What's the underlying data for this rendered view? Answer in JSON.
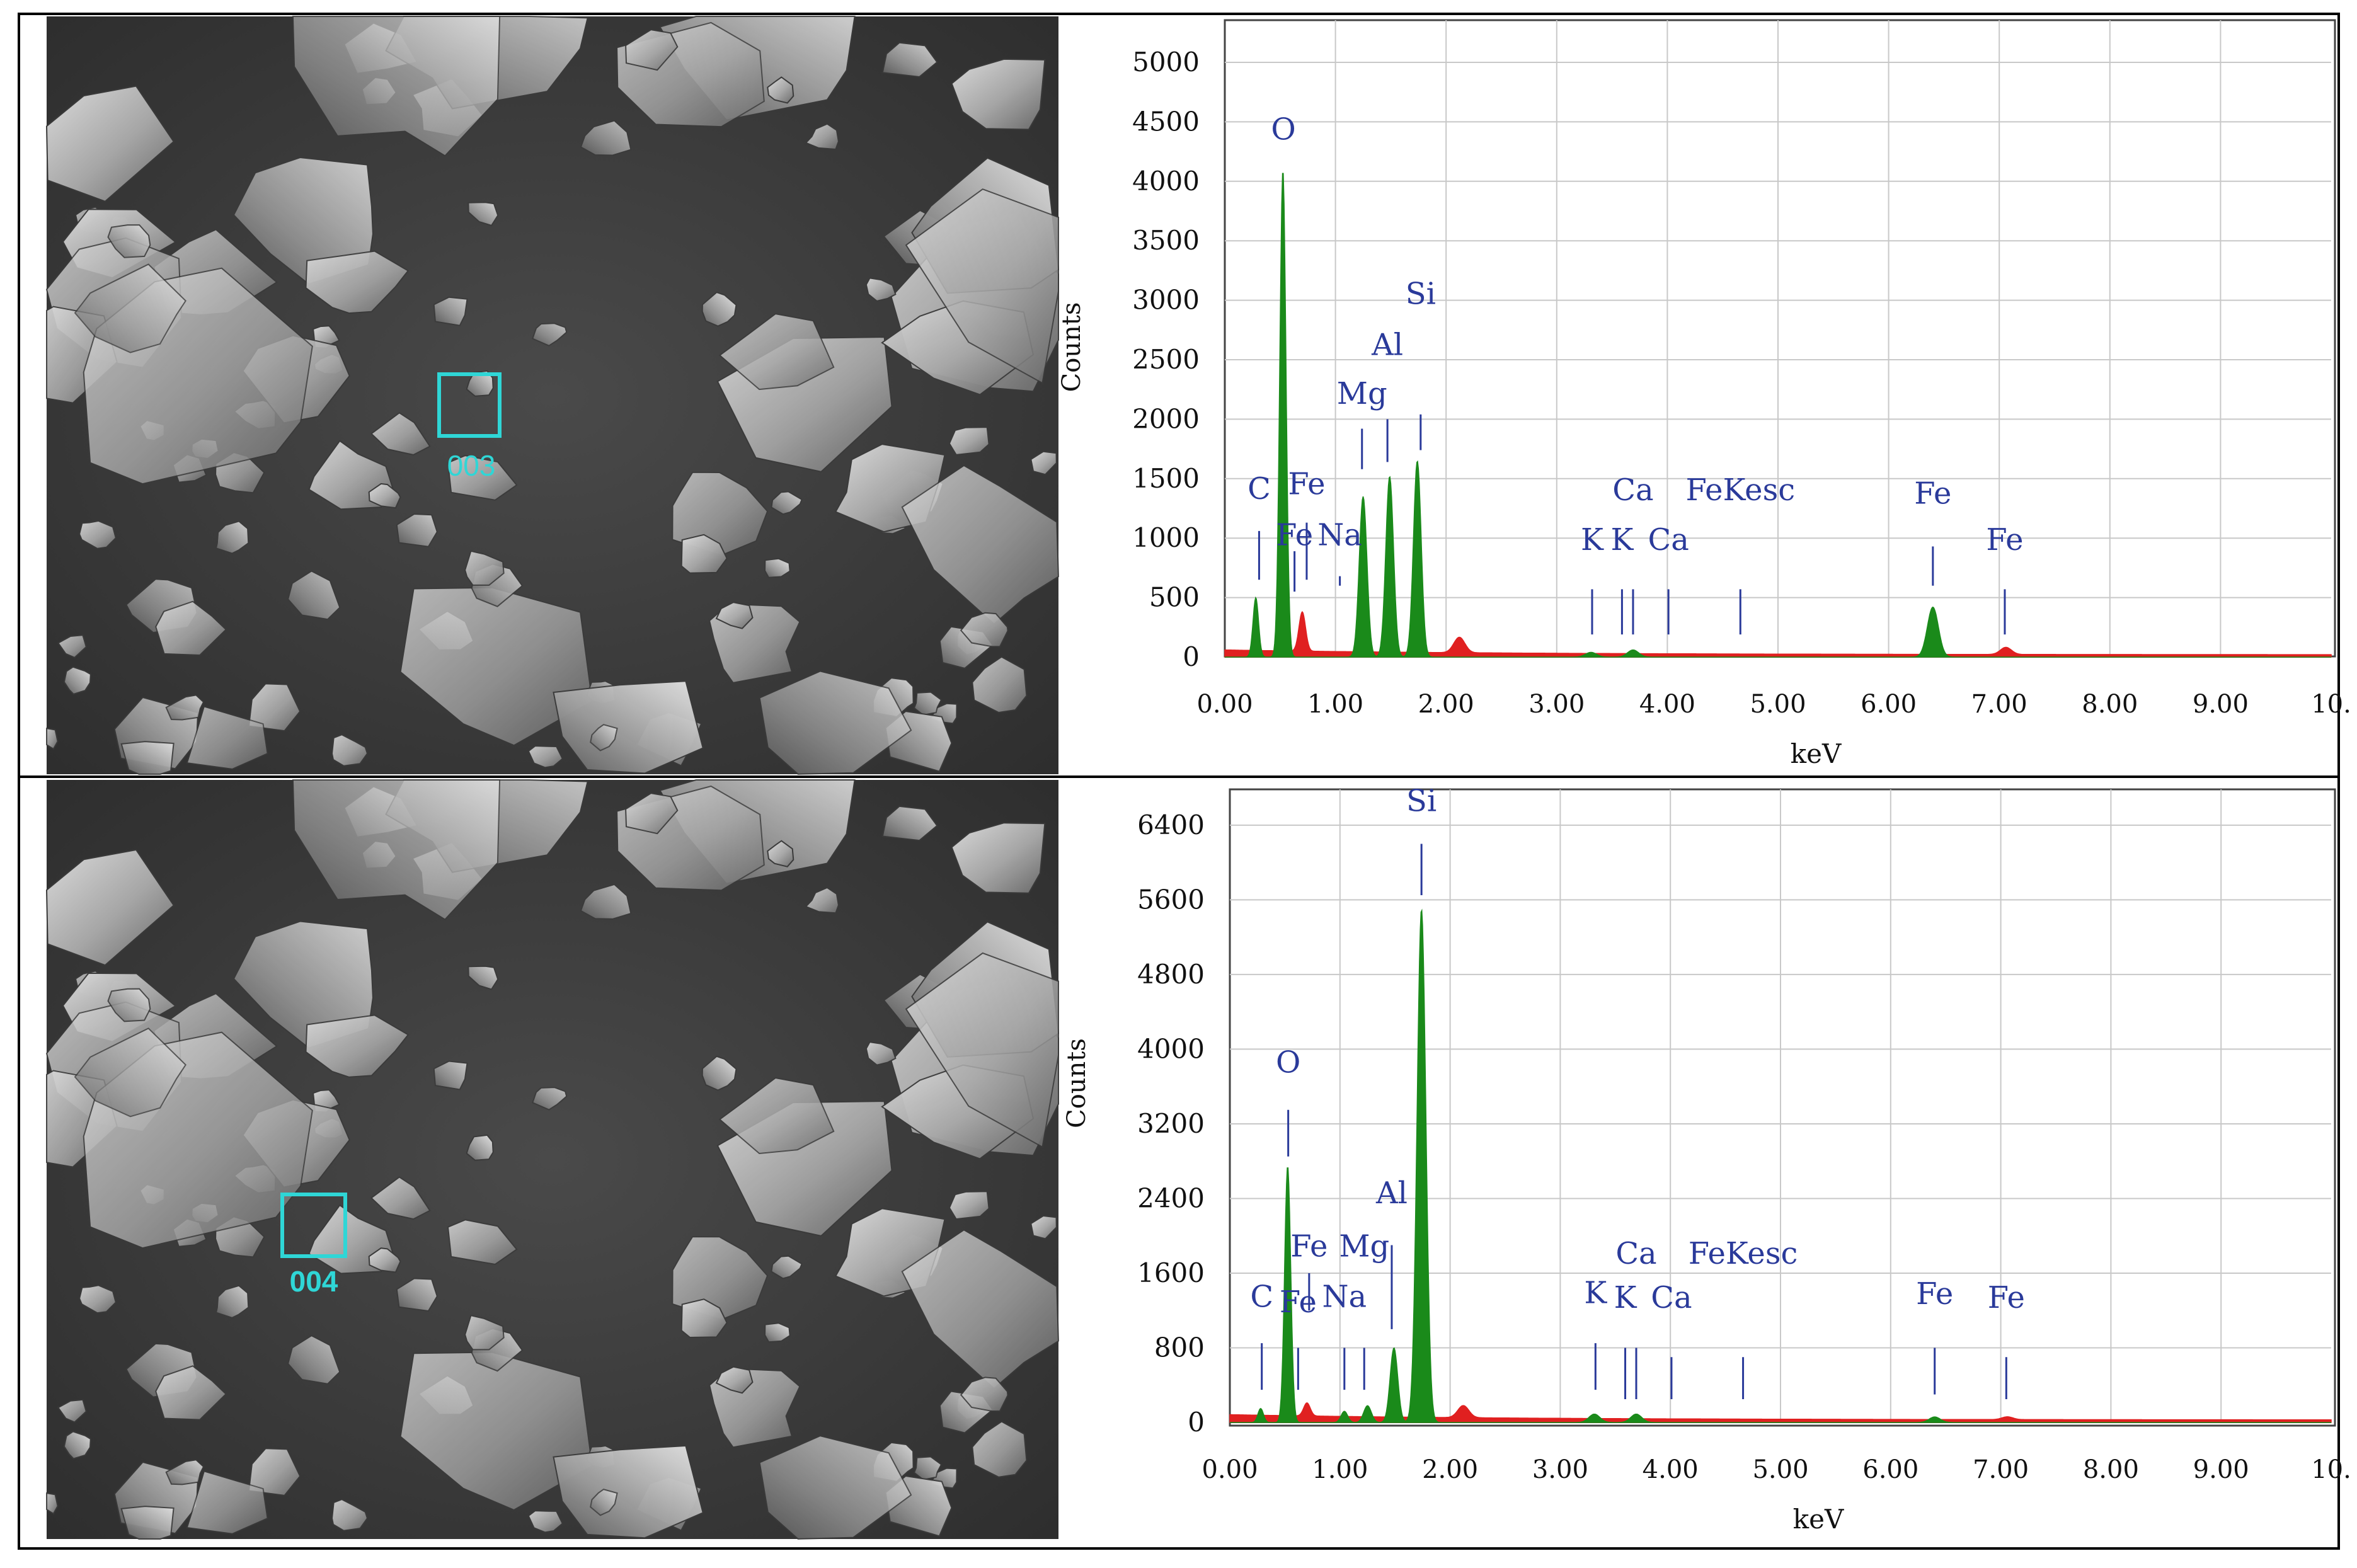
{
  "panels": [
    {
      "sem_region_label": "003",
      "chart": {
        "type": "area",
        "ylabel": "Counts",
        "xlabel": "keV",
        "xlim": [
          0,
          10
        ],
        "ylim": [
          0,
          5000
        ],
        "x_ticks": [
          "0.00",
          "1.00",
          "2.00",
          "3.00",
          "4.00",
          "5.00",
          "6.00",
          "7.00",
          "8.00",
          "9.00",
          "10."
        ],
        "y_ticks": [
          "0",
          "500",
          "1000",
          "1500",
          "2000",
          "2500",
          "3000",
          "3500",
          "4000",
          "4500",
          "5000"
        ],
        "grid": true,
        "series": [
          {
            "color": "#1a8a1a",
            "peaks": [
              {
                "x": 0.28,
                "y": 500,
                "w": 0.025
              },
              {
                "x": 0.525,
                "y": 4100,
                "w": 0.028
              },
              {
                "x": 1.25,
                "y": 1350,
                "w": 0.035
              },
              {
                "x": 1.49,
                "y": 1520,
                "w": 0.035
              },
              {
                "x": 1.74,
                "y": 1650,
                "w": 0.035
              },
              {
                "x": 3.31,
                "y": 40,
                "w": 0.05
              },
              {
                "x": 3.69,
                "y": 60,
                "w": 0.05
              },
              {
                "x": 6.4,
                "y": 420,
                "w": 0.05
              }
            ]
          },
          {
            "color": "#e02020",
            "peaks": [
              {
                "x": 0.7,
                "y": 330,
                "w": 0.03
              },
              {
                "x": 2.12,
                "y": 130,
                "w": 0.05
              },
              {
                "x": 7.06,
                "y": 60,
                "w": 0.05
              }
            ]
          }
        ],
        "element_labels": [
          {
            "text": "O",
            "x": 0.53,
            "y": 4350,
            "line_top": null,
            "line_bottom": null
          },
          {
            "text": "Si",
            "x": 1.77,
            "y": 2970,
            "line_top": 2040,
            "line_bottom": 1740
          },
          {
            "text": "Al",
            "x": 1.47,
            "y": 2540,
            "line_top": 2000,
            "line_bottom": 1640
          },
          {
            "text": "Mg",
            "x": 1.24,
            "y": 2130,
            "line_top": 1920,
            "line_bottom": 1580
          },
          {
            "text": "C",
            "x": 0.31,
            "y": 1330,
            "line_top": 1060,
            "line_bottom": 650
          },
          {
            "text": "Fe",
            "x": 0.74,
            "y": 1370,
            "line_top": 1130,
            "line_bottom": 650
          },
          {
            "text": "Fe",
            "x": 0.63,
            "y": 940,
            "line_top": 890,
            "line_bottom": 550
          },
          {
            "text": "Na",
            "x": 1.04,
            "y": 940,
            "line_top": 680,
            "line_bottom": 600
          },
          {
            "text": "Ca",
            "x": 3.69,
            "y": 1320,
            "line_top": 570,
            "line_bottom": 190
          },
          {
            "text": "FeKesc",
            "x": 4.66,
            "y": 1320,
            "line_top": 570,
            "line_bottom": 190
          },
          {
            "text": "K",
            "x": 3.32,
            "y": 900,
            "line_top": 570,
            "line_bottom": 190
          },
          {
            "text": "K",
            "x": 3.59,
            "y": 900,
            "line_top": 570,
            "line_bottom": 190
          },
          {
            "text": "Ca",
            "x": 4.01,
            "y": 900,
            "line_top": 570,
            "line_bottom": 190
          },
          {
            "text": "Fe",
            "x": 6.4,
            "y": 1290,
            "line_top": 930,
            "line_bottom": 600
          },
          {
            "text": "Fe",
            "x": 7.05,
            "y": 900,
            "line_top": 570,
            "line_bottom": 190
          }
        ]
      }
    },
    {
      "sem_region_label": "004",
      "chart": {
        "type": "area",
        "ylabel": "Counts",
        "xlabel": "keV",
        "xlim": [
          0,
          10
        ],
        "ylim": [
          0,
          7000
        ],
        "x_ticks": [
          "0.00",
          "1.00",
          "2.00",
          "3.00",
          "4.00",
          "5.00",
          "6.00",
          "7.00",
          "8.00",
          "9.00",
          "10."
        ],
        "y_ticks": [
          "0",
          "800",
          "1600",
          "2400",
          "3200",
          "4000",
          "4800",
          "5600",
          "6400"
        ],
        "grid": true,
        "series": [
          {
            "color": "#1a8a1a",
            "peaks": [
              {
                "x": 0.28,
                "y": 150,
                "w": 0.025
              },
              {
                "x": 0.525,
                "y": 2750,
                "w": 0.028
              },
              {
                "x": 1.04,
                "y": 120,
                "w": 0.03
              },
              {
                "x": 1.25,
                "y": 180,
                "w": 0.035
              },
              {
                "x": 1.49,
                "y": 800,
                "w": 0.035
              },
              {
                "x": 1.74,
                "y": 5500,
                "w": 0.04
              },
              {
                "x": 3.31,
                "y": 90,
                "w": 0.05
              },
              {
                "x": 3.69,
                "y": 90,
                "w": 0.05
              },
              {
                "x": 6.4,
                "y": 60,
                "w": 0.05
              }
            ]
          },
          {
            "color": "#e02020",
            "peaks": [
              {
                "x": 0.7,
                "y": 140,
                "w": 0.03
              },
              {
                "x": 2.12,
                "y": 130,
                "w": 0.05
              },
              {
                "x": 7.06,
                "y": 30,
                "w": 0.05
              }
            ]
          }
        ],
        "element_labels": [
          {
            "text": "Si",
            "x": 1.74,
            "y": 6550,
            "line_top": 6200,
            "line_bottom": 5650
          },
          {
            "text": "O",
            "x": 0.53,
            "y": 3750,
            "line_top": 3350,
            "line_bottom": 2850
          },
          {
            "text": "Al",
            "x": 1.47,
            "y": 2350,
            "line_top": 1900,
            "line_bottom": 1000
          },
          {
            "text": "Fe",
            "x": 0.72,
            "y": 1780,
            "line_top": 1600,
            "line_bottom": 1200
          },
          {
            "text": "Mg",
            "x": 1.22,
            "y": 1780,
            "line_top": 800,
            "line_bottom": 350
          },
          {
            "text": "C",
            "x": 0.29,
            "y": 1240,
            "line_top": 850,
            "line_bottom": 350
          },
          {
            "text": "Fe",
            "x": 0.62,
            "y": 1180,
            "line_top": 800,
            "line_bottom": 350
          },
          {
            "text": "Na",
            "x": 1.04,
            "y": 1240,
            "line_top": 800,
            "line_bottom": 350
          },
          {
            "text": "Ca",
            "x": 3.69,
            "y": 1700,
            "line_top": 800,
            "line_bottom": 250
          },
          {
            "text": "FeKesc",
            "x": 4.66,
            "y": 1700,
            "line_top": 700,
            "line_bottom": 250
          },
          {
            "text": "K",
            "x": 3.32,
            "y": 1280,
            "line_top": 850,
            "line_bottom": 350
          },
          {
            "text": "K",
            "x": 3.59,
            "y": 1230,
            "line_top": 800,
            "line_bottom": 250
          },
          {
            "text": "Ca",
            "x": 4.01,
            "y": 1230,
            "line_top": 700,
            "line_bottom": 250
          },
          {
            "text": "Fe",
            "x": 6.4,
            "y": 1270,
            "line_top": 800,
            "line_bottom": 300
          },
          {
            "text": "Fe",
            "x": 7.05,
            "y": 1230,
            "line_top": 700,
            "line_bottom": 250
          }
        ]
      }
    }
  ]
}
